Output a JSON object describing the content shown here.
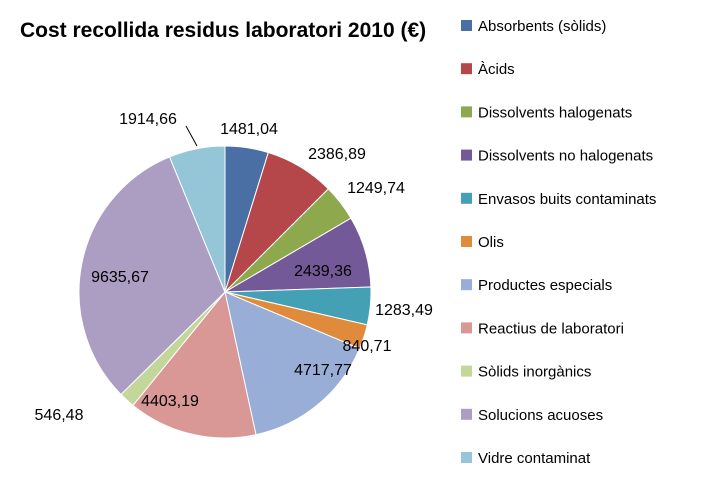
{
  "chart_data": {
    "type": "pie",
    "title": "Cost recollida residus laboratori 2010  (€)",
    "categories": [
      "Absorbents (sòlids)",
      "Àcids",
      "Dissolvents halogenats",
      "Dissolvents no halogenats",
      "Envasos buits contaminats",
      "Olis",
      "Productes especials",
      "Reactius de laboratori",
      "Sòlids inorgànics",
      "Solucions acuoses",
      "Vidre contaminat"
    ],
    "values": [
      1481.04,
      2386.89,
      1249.74,
      2439.36,
      1283.49,
      840.71,
      4717.77,
      4403.19,
      546.48,
      9635.67,
      1914.66
    ],
    "value_labels": [
      "1481,04",
      "2386,89",
      "1249,74",
      "2439,36",
      "1283,49",
      "840,71",
      "4717,77",
      "4403,19",
      "546,48",
      "9635,67",
      "1914,66"
    ],
    "colors": [
      "#4a6fa5",
      "#b5474a",
      "#8ea84d",
      "#735998",
      "#43a0b5",
      "#e08a3c",
      "#98aed6",
      "#d99796",
      "#c3d79b",
      "#ac9dc2",
      "#94c6d7"
    ],
    "legend": "right"
  }
}
